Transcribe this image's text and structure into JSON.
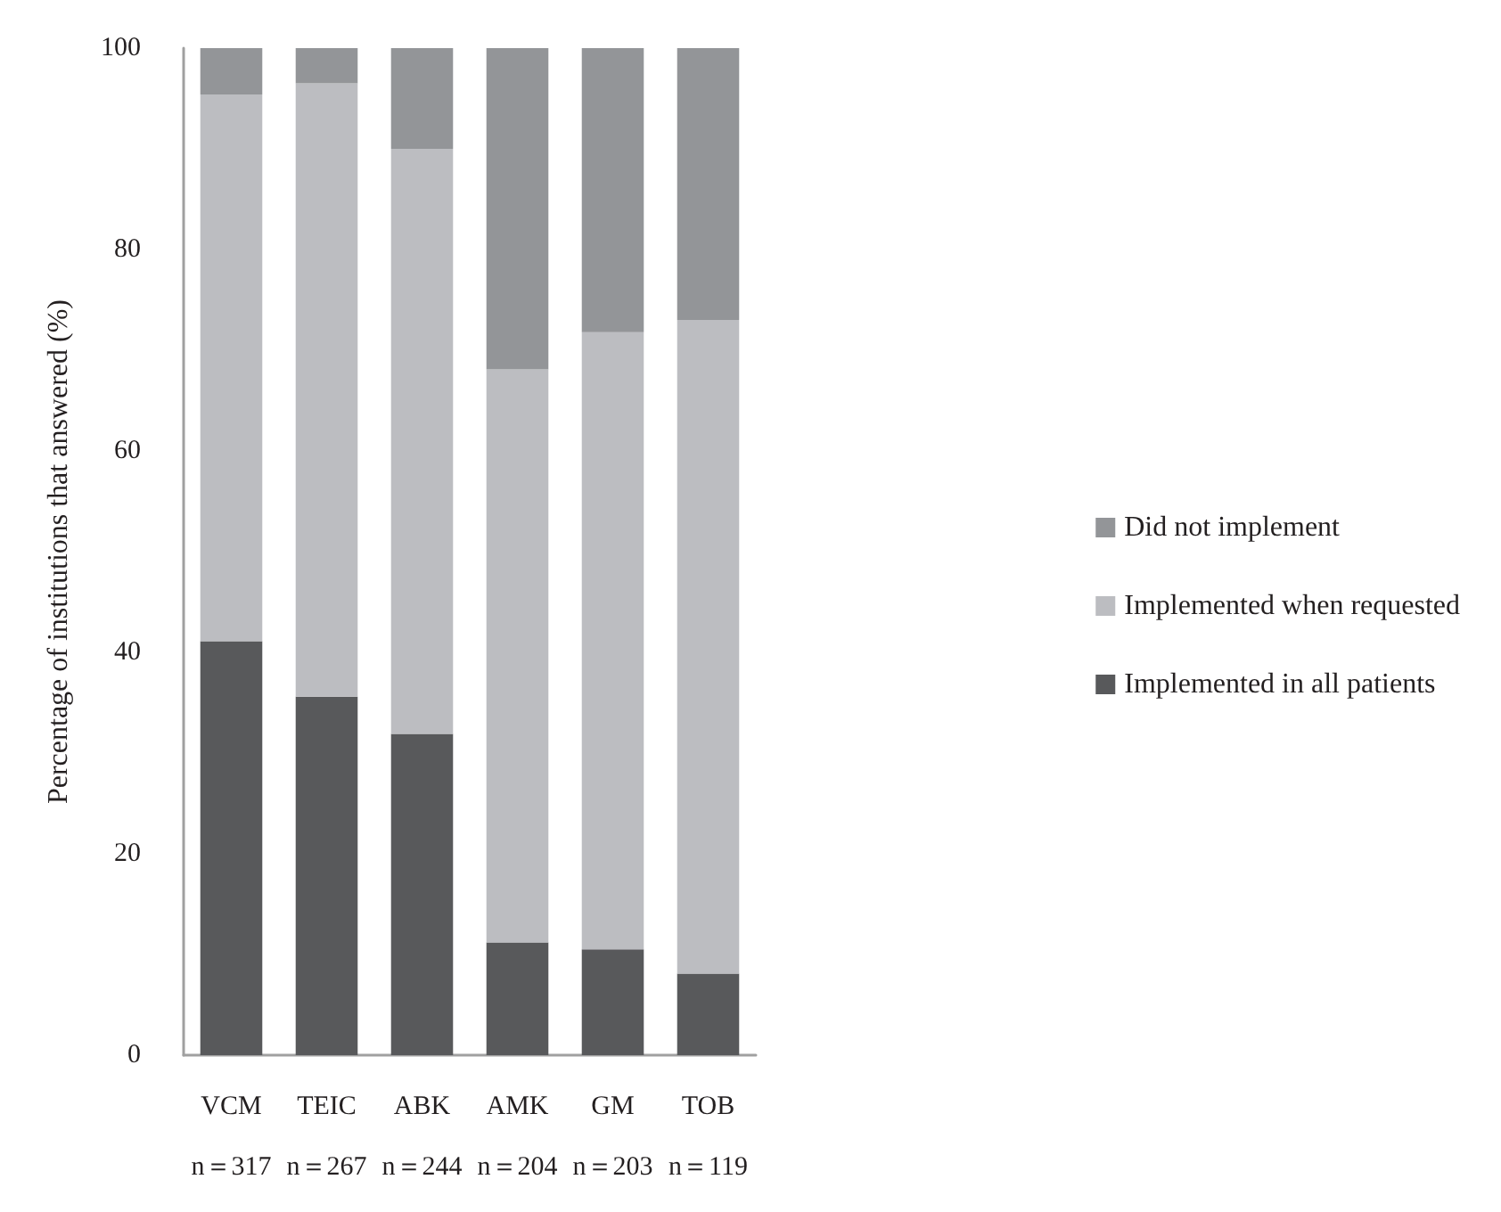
{
  "chart_data": {
    "type": "bar",
    "stacked": true,
    "ylabel": "Percentage of institutions that answered (%)",
    "categories": [
      "VCM\nn＝317",
      "TEIC\nn＝267",
      "ABK\nn＝244",
      "AMK\nn＝204",
      "GM\nn＝203",
      "TOB\nn＝119"
    ],
    "series": [
      {
        "name": "Implemented in all patients",
        "color": "#58595b",
        "values": [
          41.1,
          35.6,
          31.9,
          11.2,
          10.5,
          8.1
        ]
      },
      {
        "name": "Implemented when requested",
        "color": "#bcbdc1",
        "values": [
          54.3,
          60.9,
          58.1,
          56.9,
          61.3,
          64.9
        ]
      },
      {
        "name": "Did not implement",
        "color": "#939598",
        "values": [
          4.6,
          3.5,
          10.0,
          31.9,
          28.2,
          27.0
        ]
      }
    ],
    "ylim": [
      0,
      100
    ],
    "yticks": [
      0,
      20,
      40,
      60,
      80,
      100
    ],
    "grid": false,
    "legend": "right"
  }
}
